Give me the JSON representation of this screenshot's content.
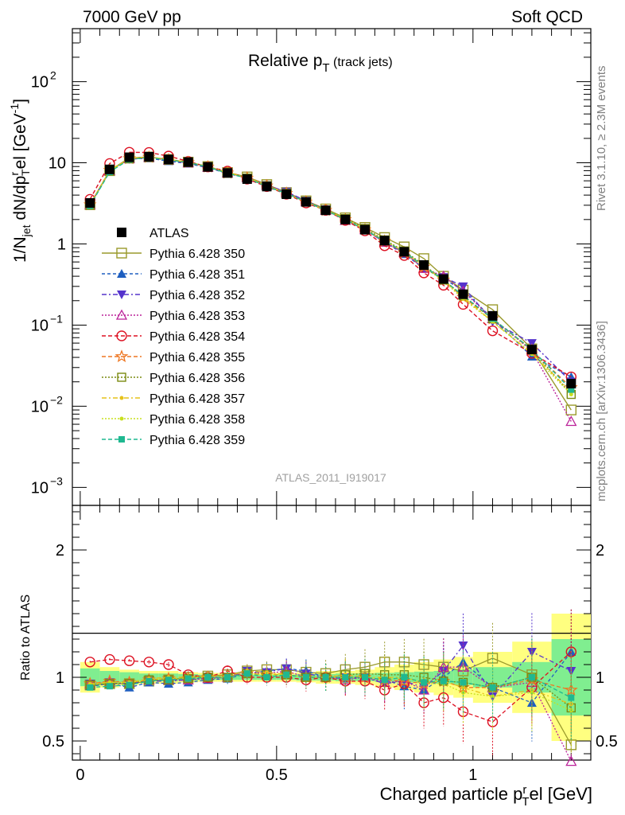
{
  "header": {
    "left": "7000 GeV pp",
    "right": "Soft QCD"
  },
  "side": {
    "rivet": "Rivet 3.1.10, ≥ 2.3M events",
    "mcplots": "mcplots.cern.ch [arXiv:1306.3436]"
  },
  "watermark": "ATLAS_2011_I919017",
  "chart_data": [
    {
      "type": "line",
      "title": "Relative pT (track jets)",
      "xlabel": "Charged particle pTrel [GeV]",
      "ylabel": "1/Njet dN/dpTrel [GeV^-1]",
      "yscale": "log",
      "xlim": [
        -0.02,
        1.3
      ],
      "ylim": [
        0.0006,
        450
      ],
      "y_ticks": [
        {
          "v": 0.001,
          "base": "10",
          "exp": "−3"
        },
        {
          "v": 0.01,
          "base": "10",
          "exp": "−2"
        },
        {
          "v": 0.1,
          "base": "10",
          "exp": "−1"
        },
        {
          "v": 1,
          "base": "1",
          "exp": ""
        },
        {
          "v": 10,
          "base": "10",
          "exp": ""
        },
        {
          "v": 100,
          "base": "10",
          "exp": "2"
        }
      ],
      "legend_position": "middle-left",
      "x": [
        0.025,
        0.075,
        0.125,
        0.175,
        0.225,
        0.275,
        0.325,
        0.375,
        0.425,
        0.475,
        0.525,
        0.575,
        0.625,
        0.675,
        0.725,
        0.775,
        0.825,
        0.875,
        0.925,
        0.975,
        1.05,
        1.15,
        1.25
      ],
      "series": [
        {
          "name": "ATLAS",
          "color": "#000000",
          "marker": "square-filled",
          "dash": "none",
          "values": [
            3.2,
            8.3,
            11.7,
            11.9,
            11.0,
            10.2,
            8.9,
            7.5,
            6.3,
            5.1,
            4.1,
            3.3,
            2.6,
            2.0,
            1.5,
            1.1,
            0.8,
            0.55,
            0.37,
            0.24,
            0.13,
            0.05,
            0.019
          ]
        },
        {
          "name": "Pythia 6.428 350",
          "color": "#9a9a2c",
          "marker": "square-open",
          "dash": "none",
          "values": [
            3.05,
            8.0,
            11.5,
            11.8,
            11.0,
            10.2,
            9.0,
            7.6,
            6.7,
            5.4,
            4.3,
            3.4,
            2.7,
            2.1,
            1.6,
            1.2,
            0.92,
            0.66,
            0.4,
            0.27,
            0.155,
            0.051,
            0.009
          ]
        },
        {
          "name": "Pythia 6.428 351",
          "color": "#1f5fc0",
          "marker": "tri-up-filled",
          "dash": "4,3",
          "values": [
            3.0,
            7.9,
            11.1,
            11.4,
            10.5,
            9.8,
            8.7,
            7.4,
            6.5,
            5.3,
            4.3,
            3.4,
            2.6,
            2.0,
            1.5,
            1.05,
            0.75,
            0.5,
            0.37,
            0.27,
            0.12,
            0.041,
            0.023
          ]
        },
        {
          "name": "Pythia 6.428 352",
          "color": "#5533cc",
          "marker": "tri-down-filled",
          "dash": "6,3,2,3",
          "values": [
            3.05,
            8.0,
            11.1,
            11.6,
            10.7,
            10.0,
            8.9,
            7.5,
            6.6,
            5.3,
            4.4,
            3.4,
            2.6,
            2.0,
            1.5,
            1.05,
            0.78,
            0.5,
            0.39,
            0.3,
            0.11,
            0.06,
            0.02
          ]
        },
        {
          "name": "Pythia 6.428 353",
          "color": "#bb2299",
          "marker": "tri-up-open",
          "dash": "2,2",
          "values": [
            3.05,
            8.0,
            11.2,
            11.7,
            10.8,
            10.0,
            8.8,
            7.5,
            6.6,
            5.3,
            4.3,
            3.3,
            2.6,
            1.95,
            1.5,
            1.05,
            0.78,
            0.5,
            0.4,
            0.26,
            0.12,
            0.048,
            0.0065
          ]
        },
        {
          "name": "Pythia 6.428 354",
          "color": "#dd1122",
          "marker": "circle-open",
          "dash": "5,3",
          "values": [
            3.55,
            9.8,
            13.5,
            13.4,
            12.1,
            10.4,
            8.9,
            7.9,
            6.3,
            5.1,
            4.1,
            3.2,
            2.6,
            1.95,
            1.45,
            0.95,
            0.72,
            0.44,
            0.31,
            0.18,
            0.085,
            0.045,
            0.023
          ]
        },
        {
          "name": "Pythia 6.428 355",
          "color": "#ee7722",
          "marker": "star-open",
          "dash": "5,3",
          "values": [
            3.05,
            8.1,
            11.3,
            11.7,
            10.9,
            10.1,
            8.9,
            7.5,
            6.5,
            5.2,
            4.2,
            3.3,
            2.6,
            2.0,
            1.5,
            1.08,
            0.78,
            0.52,
            0.36,
            0.22,
            0.12,
            0.049,
            0.017
          ]
        },
        {
          "name": "Pythia 6.428 356",
          "color": "#7a8a10",
          "marker": "square-open-small",
          "dash": "2,2",
          "values": [
            3.0,
            7.9,
            11.2,
            11.7,
            10.8,
            10.1,
            8.9,
            7.5,
            6.5,
            5.2,
            4.2,
            3.3,
            2.6,
            2.05,
            1.55,
            1.12,
            0.82,
            0.55,
            0.36,
            0.23,
            0.12,
            0.05,
            0.014
          ]
        },
        {
          "name": "Pythia 6.428 357",
          "color": "#e6c21a",
          "marker": "dot",
          "dash": "6,3,2,3",
          "values": [
            3.05,
            8.0,
            11.3,
            11.8,
            11.0,
            10.2,
            9.0,
            7.6,
            6.6,
            5.3,
            4.2,
            3.3,
            2.6,
            2.05,
            1.5,
            1.1,
            0.8,
            0.53,
            0.36,
            0.22,
            0.11,
            0.045,
            0.015
          ]
        },
        {
          "name": "Pythia 6.428 358",
          "color": "#c8e01e",
          "marker": "dot",
          "dash": "2,2",
          "values": [
            3.0,
            8.0,
            11.2,
            11.7,
            10.9,
            10.1,
            8.9,
            7.5,
            6.5,
            5.2,
            4.2,
            3.3,
            2.6,
            2.0,
            1.5,
            1.08,
            0.8,
            0.52,
            0.35,
            0.21,
            0.11,
            0.044,
            0.014
          ]
        },
        {
          "name": "Pythia 6.428 359",
          "color": "#1fb890",
          "marker": "square-filled-small",
          "dash": "5,3",
          "values": [
            2.95,
            7.7,
            11.0,
            11.6,
            10.8,
            10.1,
            8.9,
            7.4,
            6.5,
            5.1,
            4.2,
            3.3,
            2.6,
            2.0,
            1.5,
            1.08,
            0.8,
            0.53,
            0.36,
            0.23,
            0.12,
            0.05,
            0.016
          ]
        }
      ]
    },
    {
      "type": "line",
      "xlabel": "Charged particle pTrel [GeV]",
      "ylabel": "Ratio to ATLAS",
      "xlim": [
        -0.02,
        1.3
      ],
      "ylim": [
        0.35,
        2.35
      ],
      "y_ticks": [
        0.5,
        1,
        2
      ],
      "x_ticks": [
        0,
        0.5,
        1
      ],
      "x_tick_labels": [
        "0",
        "0.5",
        "1"
      ],
      "band": {
        "edges": [
          0.0,
          0.05,
          0.1,
          0.15,
          0.2,
          0.25,
          0.3,
          0.35,
          0.4,
          0.45,
          0.5,
          0.55,
          0.6,
          0.65,
          0.7,
          0.75,
          0.8,
          0.85,
          0.9,
          0.95,
          1.0,
          1.1,
          1.2,
          1.3
        ],
        "stat_err": [
          0.07,
          0.05,
          0.04,
          0.03,
          0.03,
          0.025,
          0.02,
          0.02,
          0.02,
          0.02,
          0.02,
          0.025,
          0.025,
          0.03,
          0.03,
          0.035,
          0.04,
          0.045,
          0.05,
          0.06,
          0.08,
          0.12,
          0.3
        ],
        "total_err": [
          0.12,
          0.08,
          0.06,
          0.05,
          0.05,
          0.04,
          0.035,
          0.035,
          0.035,
          0.035,
          0.035,
          0.04,
          0.05,
          0.05,
          0.06,
          0.08,
          0.1,
          0.12,
          0.14,
          0.16,
          0.2,
          0.28,
          0.5
        ]
      },
      "series": [
        {
          "name": "Pythia 6.428 350",
          "values": [
            0.94,
            0.95,
            0.95,
            0.97,
            0.98,
            1.0,
            1.01,
            1.02,
            1.05,
            1.06,
            1.06,
            1.04,
            1.03,
            1.06,
            1.08,
            1.12,
            1.12,
            1.1,
            1.08,
            1.05,
            1.15,
            1.02,
            0.47
          ]
        },
        {
          "name": "Pythia 6.428 351",
          "values": [
            0.93,
            0.95,
            0.92,
            0.96,
            0.95,
            0.96,
            0.98,
            0.99,
            1.03,
            1.05,
            1.07,
            1.05,
            1.0,
            0.99,
            1.0,
            0.98,
            0.93,
            0.9,
            1.0,
            1.12,
            0.92,
            0.8,
            1.2
          ]
        },
        {
          "name": "Pythia 6.428 352",
          "values": [
            0.95,
            0.96,
            0.95,
            0.97,
            0.97,
            0.98,
            1.0,
            1.0,
            1.05,
            1.04,
            1.07,
            1.03,
            1.0,
            1.0,
            1.0,
            0.95,
            0.97,
            0.92,
            1.05,
            1.25,
            0.85,
            1.2,
            1.05
          ]
        },
        {
          "name": "Pythia 6.428 353",
          "values": [
            0.95,
            0.96,
            0.96,
            0.98,
            0.98,
            0.98,
            0.99,
            1.0,
            1.04,
            1.03,
            1.05,
            1.0,
            1.0,
            0.98,
            1.0,
            0.96,
            0.97,
            0.9,
            1.08,
            1.08,
            0.92,
            0.96,
            0.34
          ]
        },
        {
          "name": "Pythia 6.428 354",
          "values": [
            1.12,
            1.14,
            1.13,
            1.12,
            1.1,
            1.02,
            1.0,
            1.05,
            1.0,
            1.0,
            1.0,
            0.98,
            1.0,
            0.97,
            0.97,
            0.9,
            0.95,
            0.8,
            0.84,
            0.73,
            0.65,
            0.92,
            1.2
          ]
        },
        {
          "name": "Pythia 6.428 355",
          "values": [
            0.95,
            0.97,
            0.96,
            0.98,
            0.99,
            0.99,
            1.0,
            1.0,
            1.03,
            1.02,
            1.02,
            1.0,
            1.0,
            1.0,
            1.0,
            0.98,
            0.97,
            0.95,
            0.97,
            0.92,
            0.92,
            0.98,
            0.9
          ]
        },
        {
          "name": "Pythia 6.428 356",
          "values": [
            0.94,
            0.95,
            0.95,
            0.98,
            0.98,
            0.99,
            1.0,
            1.0,
            1.03,
            1.02,
            1.02,
            1.0,
            1.0,
            1.02,
            1.03,
            1.02,
            1.02,
            1.0,
            0.97,
            0.96,
            0.92,
            1.0,
            0.76
          ]
        },
        {
          "name": "Pythia 6.428 357",
          "values": [
            0.95,
            0.96,
            0.96,
            0.99,
            1.0,
            1.0,
            1.01,
            1.01,
            1.05,
            1.04,
            1.02,
            1.0,
            1.0,
            1.02,
            1.0,
            1.0,
            1.0,
            0.96,
            0.97,
            0.92,
            0.85,
            0.9,
            0.79
          ]
        },
        {
          "name": "Pythia 6.428 358",
          "values": [
            0.94,
            0.96,
            0.96,
            0.98,
            0.99,
            0.99,
            1.0,
            1.0,
            1.03,
            1.02,
            1.02,
            1.0,
            1.0,
            1.0,
            1.0,
            0.98,
            1.0,
            0.95,
            0.95,
            0.88,
            0.85,
            0.88,
            0.74
          ]
        },
        {
          "name": "Pythia 6.428 359",
          "values": [
            0.92,
            0.93,
            0.94,
            0.97,
            0.98,
            0.99,
            1.0,
            1.0,
            1.03,
            1.0,
            1.02,
            1.0,
            1.0,
            1.0,
            1.0,
            0.98,
            1.0,
            0.96,
            0.97,
            0.96,
            0.92,
            1.0,
            0.84
          ]
        }
      ]
    }
  ]
}
